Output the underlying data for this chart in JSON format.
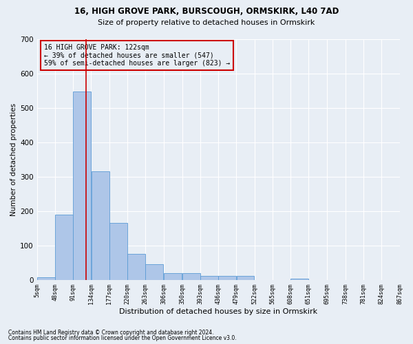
{
  "title1": "16, HIGH GROVE PARK, BURSCOUGH, ORMSKIRK, L40 7AD",
  "title2": "Size of property relative to detached houses in Ormskirk",
  "xlabel": "Distribution of detached houses by size in Ormskirk",
  "ylabel": "Number of detached properties",
  "footer1": "Contains HM Land Registry data © Crown copyright and database right 2024.",
  "footer2": "Contains public sector information licensed under the Open Government Licence v3.0.",
  "annotation_line1": "16 HIGH GROVE PARK: 122sqm",
  "annotation_line2": "← 39% of detached houses are smaller (547)",
  "annotation_line3": "59% of semi-detached houses are larger (823) →",
  "bin_edges": [
    5,
    48,
    91,
    134,
    177,
    220,
    263,
    306,
    350,
    393,
    436,
    479,
    522,
    565,
    608,
    651,
    695,
    738,
    781,
    824,
    867
  ],
  "bar_heights": [
    8,
    190,
    547,
    315,
    165,
    76,
    46,
    20,
    20,
    12,
    12,
    12,
    0,
    0,
    5,
    0,
    0,
    0,
    0,
    0
  ],
  "bar_color": "#aec6e8",
  "bar_edge_color": "#5b9bd5",
  "vline_color": "#cc0000",
  "vline_x": 122,
  "annotation_box_color": "#cc0000",
  "background_color": "#e8eef5",
  "grid_color": "#ffffff",
  "ylim": [
    0,
    700
  ],
  "xlim": [
    5,
    867
  ],
  "yticks": [
    0,
    100,
    200,
    300,
    400,
    500,
    600,
    700
  ]
}
